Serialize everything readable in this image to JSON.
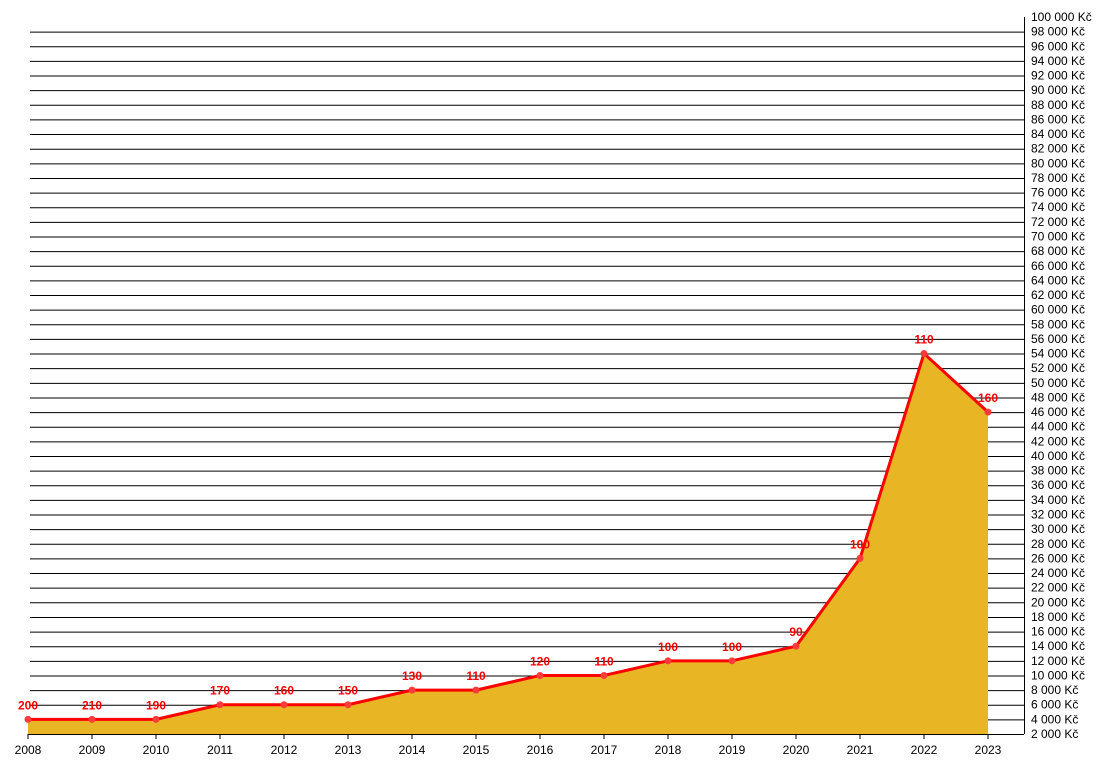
{
  "colors": {
    "line": "#ff0000",
    "fill": "#e8b624",
    "grid": "#000000",
    "marker": "#ff3b3b",
    "label": "#ff0000"
  },
  "chart_data": {
    "type": "area",
    "title": "",
    "xlabel": "",
    "ylabel": "",
    "grid": true,
    "x": [
      "2008",
      "2009",
      "2010",
      "2011",
      "2012",
      "2013",
      "2014",
      "2015",
      "2016",
      "2017",
      "2018",
      "2019",
      "2020",
      "2021",
      "2022",
      "2023"
    ],
    "series": [
      {
        "values": [
          4000,
          4000,
          4000,
          6000,
          6000,
          6000,
          8000,
          8000,
          10000,
          10000,
          12000,
          12000,
          14000,
          26000,
          54000,
          46000
        ],
        "labels": [
          "200",
          "210",
          "190",
          "170",
          "160",
          "150",
          "130",
          "110",
          "120",
          "110",
          "100",
          "100",
          "90",
          "100",
          "110",
          "160"
        ]
      }
    ],
    "ylim": [
      2000,
      100000
    ],
    "ytick_step": 2000,
    "ytick_labels": [
      "2 000 Kč",
      "4 000 Kč",
      "6 000 Kč",
      "8 000 Kč",
      "10 000 Kč",
      "12 000 Kč",
      "14 000 Kč",
      "16 000 Kč",
      "18 000 Kč",
      "20 000 Kč",
      "22 000 Kč",
      "24 000 Kč",
      "26 000 Kč",
      "28 000 Kč",
      "30 000 Kč",
      "32 000 Kč",
      "34 000 Kč",
      "36 000 Kč",
      "38 000 Kč",
      "40 000 Kč",
      "42 000 Kč",
      "44 000 Kč",
      "46 000 Kč",
      "48 000 Kč",
      "50 000 Kč",
      "52 000 Kč",
      "54 000 Kč",
      "56 000 Kč",
      "58 000 Kč",
      "60 000 Kč",
      "62 000 Kč",
      "64 000 Kč",
      "66 000 Kč",
      "68 000 Kč",
      "70 000 Kč",
      "72 000 Kč",
      "74 000 Kč",
      "76 000 Kč",
      "78 000 Kč",
      "80 000 Kč",
      "82 000 Kč",
      "84 000 Kč",
      "86 000 Kč",
      "88 000 Kč",
      "90 000 Kč",
      "92 000 Kč",
      "94 000 Kč",
      "96 000 Kč",
      "98 000 Kč",
      "100 000 Kč"
    ]
  }
}
